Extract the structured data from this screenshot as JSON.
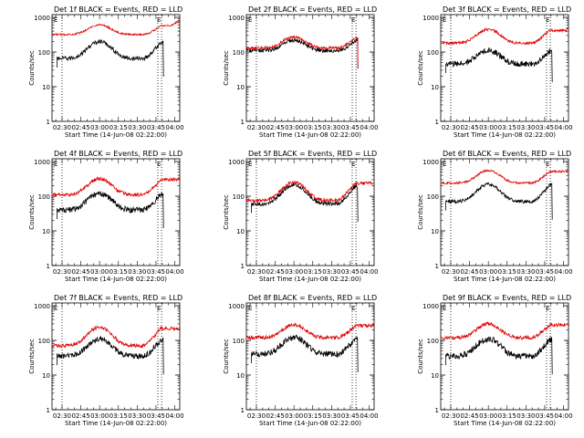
{
  "colors": {
    "events": "#000000",
    "lld": "#e00000",
    "axis": "#000000",
    "marker": "#000000"
  },
  "common": {
    "xlabel": "Start Time (14-Jun-08 02:22:00)",
    "ylabel": "Counts/sec",
    "x_range_minutes": [
      0,
      102
    ],
    "y_range": [
      1,
      1200
    ],
    "y_scale": "log",
    "x_tick_labels": [
      "02:30",
      "02:45",
      "03:00",
      "03:15",
      "03:30",
      "03:45",
      "04:00"
    ],
    "x_tick_minutes": [
      8,
      23,
      38,
      53,
      68,
      83,
      98
    ],
    "y_tick_labels": [
      "1",
      "10",
      "100",
      "1000"
    ],
    "y_tick_values": [
      1,
      10,
      100,
      1000
    ],
    "vertical_markers_minutes": [
      8,
      84.5,
      87.5
    ],
    "marker_labels": [
      "E",
      "E"
    ]
  },
  "chart_data": [
    {
      "type": "line",
      "title": "Det 1f BLACK = Events, RED = LLD",
      "series": [
        {
          "name": "Events",
          "color": "#000000",
          "start": 4,
          "end": 89,
          "base": 65,
          "peak": 200,
          "spike": 210,
          "noise": 0.06
        },
        {
          "name": "LLD",
          "color": "#e00000",
          "start": 0,
          "end": 102,
          "base": 320,
          "peak": 610,
          "spike": 800,
          "noise": 0.025
        }
      ]
    },
    {
      "type": "line",
      "title": "Det 2f BLACK = Events, RED = LLD",
      "series": [
        {
          "name": "Events",
          "color": "#000000",
          "start": 0,
          "end": 89,
          "base": 110,
          "peak": 220,
          "spike": 230,
          "noise": 0.06
        },
        {
          "name": "LLD",
          "color": "#e00000",
          "start": 0,
          "end": 89,
          "base": 130,
          "peak": 270,
          "spike": 280,
          "noise": 0.04
        }
      ]
    },
    {
      "type": "line",
      "title": "Det 3f BLACK = Events, RED = LLD",
      "series": [
        {
          "name": "Events",
          "color": "#000000",
          "start": 4,
          "end": 89,
          "base": 45,
          "peak": 110,
          "spike": 90,
          "noise": 0.09
        },
        {
          "name": "LLD",
          "color": "#e00000",
          "start": 0,
          "end": 102,
          "base": 180,
          "peak": 450,
          "spike": 460,
          "noise": 0.04
        }
      ]
    },
    {
      "type": "line",
      "title": "Det 4f BLACK = Events, RED = LLD",
      "series": [
        {
          "name": "Events",
          "color": "#000000",
          "start": 4,
          "end": 89,
          "base": 40,
          "peak": 120,
          "spike": 130,
          "noise": 0.08
        },
        {
          "name": "LLD",
          "color": "#e00000",
          "start": 0,
          "end": 102,
          "base": 110,
          "peak": 320,
          "spike": 340,
          "noise": 0.05
        }
      ]
    },
    {
      "type": "line",
      "title": "Det 5f BLACK = Events, RED = LLD",
      "series": [
        {
          "name": "Events",
          "color": "#000000",
          "start": 4,
          "end": 89,
          "base": 60,
          "peak": 210,
          "spike": 180,
          "noise": 0.06
        },
        {
          "name": "LLD",
          "color": "#e00000",
          "start": 0,
          "end": 102,
          "base": 75,
          "peak": 250,
          "spike": 230,
          "noise": 0.05
        }
      ]
    },
    {
      "type": "line",
      "title": "Det 6f BLACK = Events, RED = LLD",
      "series": [
        {
          "name": "Events",
          "color": "#000000",
          "start": 4,
          "end": 89,
          "base": 70,
          "peak": 220,
          "spike": 170,
          "noise": 0.05
        },
        {
          "name": "LLD",
          "color": "#e00000",
          "start": 0,
          "end": 102,
          "base": 240,
          "peak": 550,
          "spike": 480,
          "noise": 0.03
        }
      ]
    },
    {
      "type": "line",
      "title": "Det 7f BLACK = Events, RED = LLD",
      "series": [
        {
          "name": "Events",
          "color": "#000000",
          "start": 4,
          "end": 89,
          "base": 35,
          "peak": 110,
          "spike": 110,
          "noise": 0.08
        },
        {
          "name": "LLD",
          "color": "#e00000",
          "start": 0,
          "end": 102,
          "base": 70,
          "peak": 240,
          "spike": 240,
          "noise": 0.05
        }
      ]
    },
    {
      "type": "line",
      "title": "Det 8f BLACK = Events, RED = LLD",
      "series": [
        {
          "name": "Events",
          "color": "#000000",
          "start": 4,
          "end": 89,
          "base": 40,
          "peak": 120,
          "spike": 110,
          "noise": 0.09
        },
        {
          "name": "LLD",
          "color": "#e00000",
          "start": 0,
          "end": 102,
          "base": 120,
          "peak": 280,
          "spike": 280,
          "noise": 0.05
        }
      ]
    },
    {
      "type": "line",
      "title": "Det 9f BLACK = Events, RED = LLD",
      "series": [
        {
          "name": "Events",
          "color": "#000000",
          "start": 4,
          "end": 89,
          "base": 35,
          "peak": 110,
          "spike": 100,
          "noise": 0.09
        },
        {
          "name": "LLD",
          "color": "#e00000",
          "start": 0,
          "end": 102,
          "base": 120,
          "peak": 300,
          "spike": 250,
          "noise": 0.05
        }
      ]
    }
  ]
}
